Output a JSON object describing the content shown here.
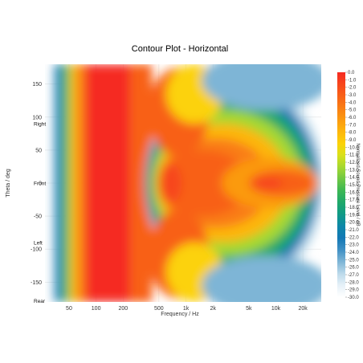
{
  "chart_data": {
    "type": "contour",
    "title": "Contour Plot - Horizontal",
    "xlabel": "Frequency / Hz",
    "ylabel": "Theta / deg",
    "x_scale": "log",
    "xlim": [
      27,
      32000
    ],
    "ylim": [
      -180,
      180
    ],
    "x_ticks": [
      {
        "value": 50,
        "label": "50"
      },
      {
        "value": 100,
        "label": "100"
      },
      {
        "value": 200,
        "label": "200"
      },
      {
        "value": 500,
        "label": "500"
      },
      {
        "value": 1000,
        "label": "1k"
      },
      {
        "value": 2000,
        "label": "2k"
      },
      {
        "value": 5000,
        "label": "5k"
      },
      {
        "value": 10000,
        "label": "10k"
      },
      {
        "value": 20000,
        "label": "20k"
      }
    ],
    "y_ticks": [
      150,
      100,
      50,
      0,
      -50,
      -100,
      -150
    ],
    "annotations": [
      {
        "text": "Right",
        "theta": 90
      },
      {
        "text": "Front",
        "theta": 0
      },
      {
        "text": "Left",
        "theta": -90
      },
      {
        "text": "Rear",
        "theta": -180
      }
    ],
    "colorbar": {
      "label": "Normalized Sound Pressure Level / dB",
      "min": -30,
      "max": 0,
      "tick_labels": [
        "0.0",
        "-1.0",
        "-2.0",
        "-3.0",
        "-4.0",
        "-5.0",
        "-6.0",
        "-7.0",
        "-8.0",
        "-9.0",
        "-10.0",
        "-11.0",
        "-12.0",
        "-13.0",
        "-14.0",
        "-15.0",
        "-16.0",
        "-17.0",
        "-18.0",
        "-19.0",
        "-20.0",
        "-21.0",
        "-22.0",
        "-23.0",
        "-24.0",
        "-25.0",
        "-26.0",
        "-27.0",
        "-28.0",
        "-29.0",
        "-30.0"
      ],
      "colors": [
        "#f52a22",
        "#f7461c",
        "#f86118",
        "#f97d14",
        "#fb9a10",
        "#fdb60c",
        "#fcd208",
        "#d9e01a",
        "#a5d830",
        "#6fc844",
        "#3cb754",
        "#1fa86a",
        "#109a86",
        "#0d87a8",
        "#1278b5",
        "#3f90c4",
        "#7eb5d6",
        "#bbd9ea",
        "#e6f1f8",
        "#ffffff"
      ]
    }
  }
}
